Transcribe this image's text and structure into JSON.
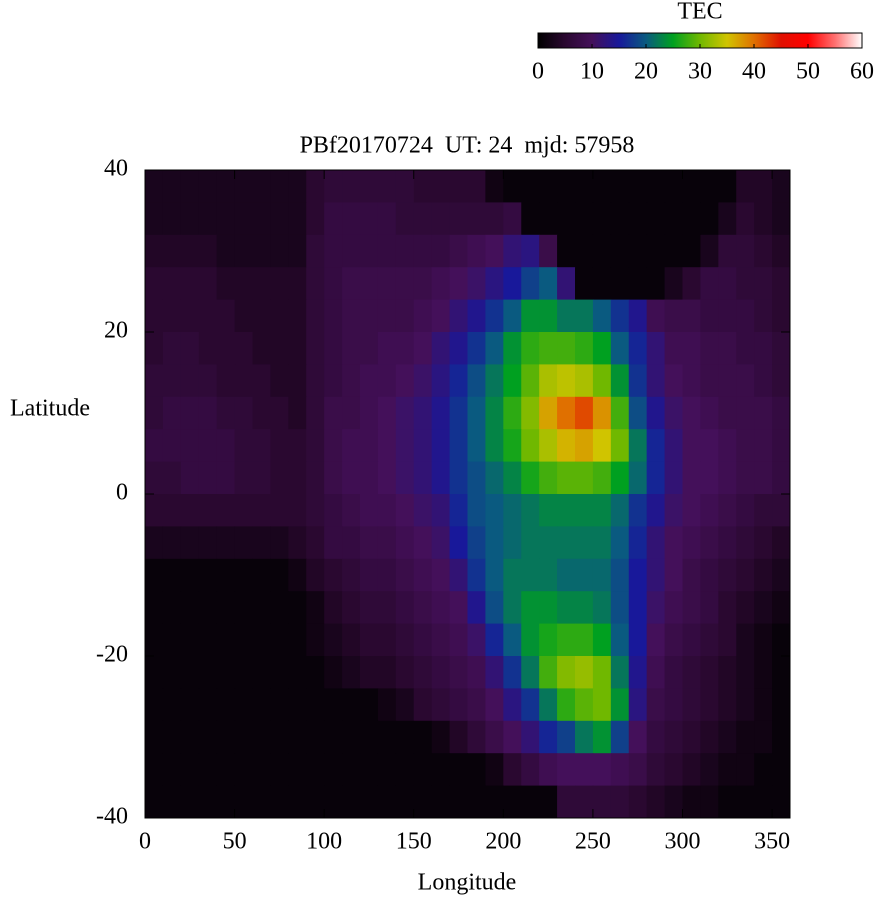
{
  "chart_data": {
    "type": "heatmap",
    "title": "PBf20170724  UT: 24  mjd: 57958",
    "xlabel": "Longitude",
    "ylabel": "Latitude",
    "colorbar_label": "TEC",
    "xlim": [
      0,
      360
    ],
    "ylim": [
      -40,
      40
    ],
    "xticks": [
      0,
      50,
      100,
      150,
      200,
      250,
      300,
      350
    ],
    "yticks": [
      -40,
      -20,
      0,
      20,
      40
    ],
    "cblim": [
      0,
      60
    ],
    "cbticks": [
      0,
      10,
      20,
      30,
      40,
      50,
      60
    ],
    "colormap": [
      "#000000",
      "#2a0830",
      "#44105a",
      "#18189a",
      "#0a5a80",
      "#00a020",
      "#70b800",
      "#d0c400",
      "#e07000",
      "#e01000",
      "#ff0000",
      "#ff7070",
      "#ffffff"
    ],
    "x": [
      5,
      15,
      25,
      35,
      45,
      55,
      65,
      75,
      85,
      95,
      105,
      115,
      125,
      135,
      145,
      155,
      165,
      175,
      185,
      195,
      205,
      215,
      225,
      235,
      245,
      255,
      265,
      275,
      285,
      295,
      305,
      315,
      325,
      335,
      345,
      355
    ],
    "y": [
      38,
      34,
      30,
      26,
      22,
      18,
      14,
      10,
      6,
      2,
      -2,
      -6,
      -10,
      -14,
      -18,
      -22,
      -26,
      -30,
      -34,
      -38
    ],
    "values": [
      [
        3,
        3,
        3,
        3,
        3,
        3,
        3,
        3,
        3,
        5,
        6,
        6,
        6,
        6,
        6,
        5,
        5,
        5,
        5,
        2,
        1,
        1,
        1,
        1,
        1,
        1,
        1,
        1,
        1,
        1,
        1,
        1,
        1,
        4,
        4,
        3
      ],
      [
        3,
        3,
        3,
        3,
        3,
        3,
        3,
        3,
        3,
        5,
        7,
        7,
        7,
        7,
        6,
        6,
        6,
        6,
        6,
        6,
        7,
        1,
        1,
        1,
        1,
        1,
        1,
        1,
        1,
        1,
        1,
        1,
        3,
        5,
        4,
        3
      ],
      [
        4,
        4,
        4,
        4,
        3,
        3,
        3,
        3,
        3,
        6,
        7,
        7,
        7,
        7,
        7,
        7,
        7,
        8,
        9,
        10,
        12,
        13,
        8,
        1,
        1,
        1,
        1,
        1,
        1,
        1,
        1,
        3,
        6,
        6,
        5,
        4
      ],
      [
        5,
        5,
        5,
        5,
        4,
        4,
        4,
        4,
        4,
        6,
        7,
        8,
        8,
        8,
        8,
        8,
        9,
        10,
        11,
        13,
        15,
        18,
        20,
        12,
        1,
        1,
        1,
        1,
        1,
        3,
        5,
        7,
        7,
        6,
        6,
        5
      ],
      [
        5,
        5,
        5,
        5,
        5,
        4,
        4,
        4,
        4,
        6,
        7,
        8,
        8,
        8,
        8,
        9,
        10,
        12,
        14,
        17,
        20,
        24,
        24,
        22,
        22,
        20,
        17,
        14,
        9,
        8,
        8,
        7,
        7,
        7,
        6,
        5
      ],
      [
        5,
        6,
        6,
        5,
        5,
        5,
        4,
        4,
        4,
        6,
        7,
        8,
        8,
        9,
        9,
        10,
        12,
        14,
        17,
        20,
        24,
        27,
        28,
        28,
        27,
        25,
        20,
        16,
        12,
        9,
        9,
        8,
        8,
        7,
        7,
        6
      ],
      [
        6,
        6,
        6,
        6,
        5,
        5,
        5,
        4,
        4,
        6,
        7,
        8,
        9,
        9,
        10,
        11,
        13,
        16,
        19,
        22,
        25,
        29,
        33,
        34,
        33,
        30,
        24,
        17,
        12,
        10,
        9,
        8,
        8,
        8,
        7,
        6
      ],
      [
        6,
        7,
        7,
        7,
        6,
        6,
        5,
        5,
        4,
        6,
        8,
        8,
        9,
        10,
        11,
        12,
        14,
        17,
        20,
        23,
        27,
        31,
        37,
        40,
        42,
        38,
        28,
        19,
        14,
        11,
        10,
        9,
        8,
        8,
        8,
        7
      ],
      [
        7,
        7,
        7,
        7,
        7,
        6,
        6,
        5,
        5,
        6,
        8,
        9,
        9,
        10,
        11,
        12,
        14,
        17,
        20,
        23,
        26,
        30,
        33,
        36,
        37,
        35,
        30,
        22,
        16,
        12,
        10,
        10,
        9,
        8,
        8,
        7
      ],
      [
        6,
        6,
        7,
        7,
        7,
        6,
        6,
        5,
        5,
        6,
        8,
        9,
        9,
        10,
        11,
        12,
        14,
        17,
        19,
        21,
        23,
        26,
        28,
        29,
        29,
        28,
        25,
        21,
        16,
        12,
        10,
        10,
        9,
        8,
        8,
        7
      ],
      [
        5,
        5,
        5,
        5,
        5,
        5,
        5,
        5,
        5,
        6,
        7,
        8,
        9,
        9,
        10,
        11,
        12,
        16,
        19,
        20,
        21,
        22,
        23,
        23,
        23,
        23,
        21,
        17,
        14,
        11,
        10,
        9,
        8,
        7,
        6,
        6
      ],
      [
        3,
        3,
        3,
        3,
        3,
        3,
        3,
        3,
        4,
        5,
        7,
        7,
        8,
        8,
        9,
        10,
        11,
        15,
        18,
        20,
        21,
        22,
        22,
        22,
        22,
        22,
        20,
        16,
        12,
        10,
        9,
        8,
        7,
        6,
        5,
        4
      ],
      [
        1,
        1,
        1,
        1,
        1,
        1,
        1,
        1,
        2,
        4,
        5,
        6,
        7,
        7,
        8,
        9,
        10,
        12,
        17,
        20,
        22,
        22,
        22,
        21,
        21,
        21,
        19,
        15,
        12,
        10,
        8,
        7,
        6,
        5,
        4,
        3
      ],
      [
        1,
        1,
        1,
        1,
        1,
        1,
        1,
        1,
        1,
        2,
        4,
        5,
        6,
        6,
        7,
        8,
        9,
        10,
        14,
        19,
        22,
        24,
        24,
        23,
        23,
        22,
        19,
        15,
        11,
        9,
        8,
        7,
        5,
        4,
        3,
        2
      ],
      [
        1,
        1,
        1,
        1,
        1,
        1,
        1,
        1,
        1,
        2,
        3,
        4,
        5,
        5,
        6,
        7,
        8,
        9,
        11,
        16,
        20,
        24,
        26,
        27,
        27,
        25,
        20,
        15,
        10,
        8,
        7,
        6,
        5,
        3,
        2,
        1
      ],
      [
        1,
        1,
        1,
        1,
        1,
        1,
        1,
        1,
        1,
        1,
        2,
        3,
        4,
        4,
        5,
        6,
        7,
        8,
        9,
        12,
        17,
        22,
        28,
        31,
        32,
        30,
        22,
        14,
        9,
        7,
        6,
        5,
        4,
        3,
        2,
        1
      ],
      [
        1,
        1,
        1,
        1,
        1,
        1,
        1,
        1,
        1,
        1,
        1,
        1,
        1,
        2,
        3,
        5,
        6,
        7,
        8,
        10,
        13,
        17,
        22,
        27,
        29,
        30,
        24,
        13,
        8,
        7,
        6,
        5,
        4,
        3,
        2,
        1
      ],
      [
        1,
        1,
        1,
        1,
        1,
        1,
        1,
        1,
        1,
        1,
        1,
        1,
        1,
        1,
        1,
        1,
        2,
        4,
        6,
        8,
        10,
        12,
        16,
        18,
        22,
        24,
        18,
        10,
        7,
        6,
        5,
        4,
        3,
        2,
        2,
        1
      ],
      [
        1,
        1,
        1,
        1,
        1,
        1,
        1,
        1,
        1,
        1,
        1,
        1,
        1,
        1,
        1,
        1,
        1,
        1,
        1,
        2,
        5,
        7,
        9,
        10,
        10,
        10,
        9,
        8,
        6,
        5,
        4,
        3,
        2,
        2,
        1,
        1
      ],
      [
        1,
        1,
        1,
        1,
        1,
        1,
        1,
        1,
        1,
        1,
        1,
        1,
        1,
        1,
        1,
        1,
        1,
        1,
        1,
        1,
        1,
        1,
        1,
        6,
        6,
        6,
        6,
        5,
        4,
        3,
        2,
        2,
        1,
        1,
        1,
        1
      ]
    ]
  }
}
